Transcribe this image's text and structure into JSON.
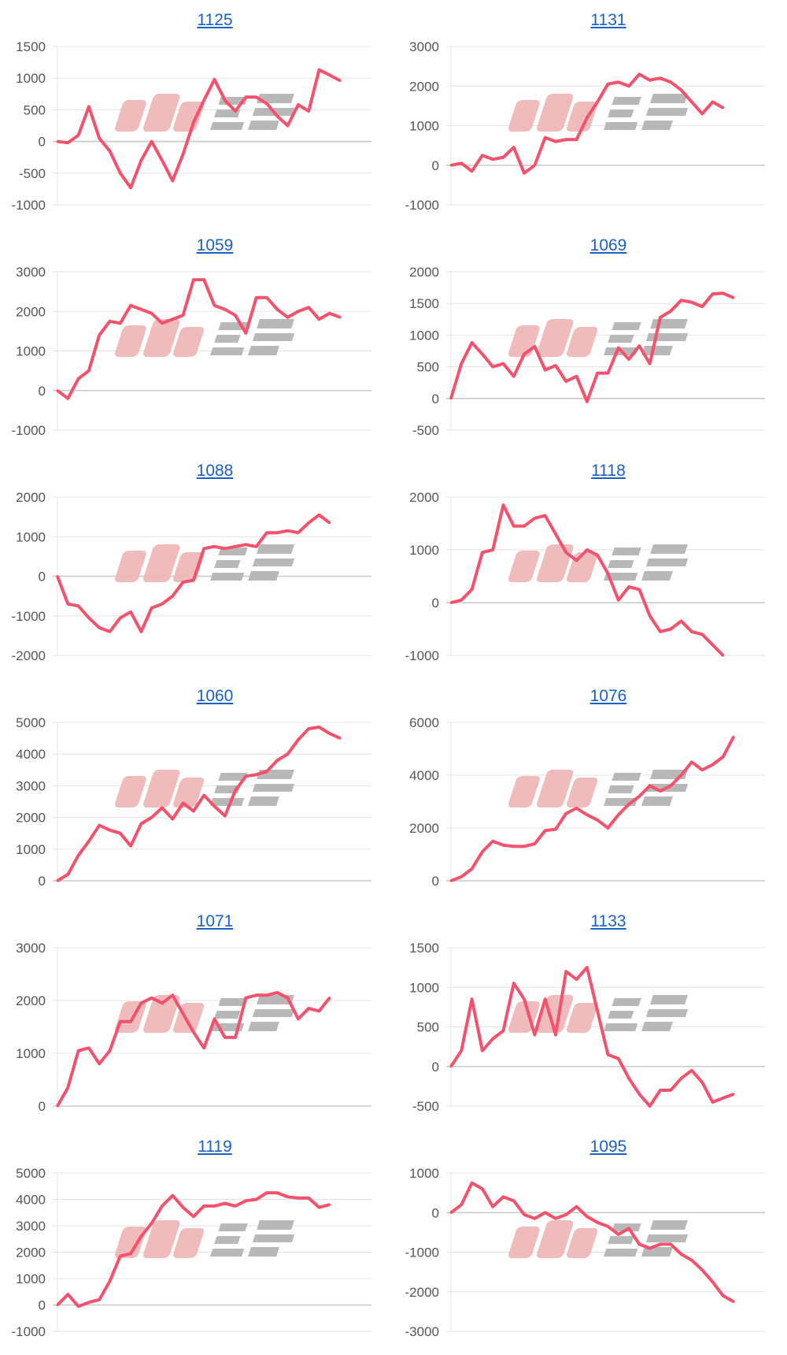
{
  "watermark_logo_text": "みんレポ",
  "colors": {
    "line": "#f4516c",
    "grid": "#e3e3e3",
    "axis": "#c8c8c8",
    "tick": "#555555",
    "title": "#1a5fc8",
    "wm_pink": "#eeb4b4",
    "wm_grey": "#b4b4b4"
  },
  "chart_data": [
    {
      "type": "line",
      "title": "1125",
      "ylim": [
        -1000,
        1500
      ],
      "ystep": 500,
      "yticks": [
        "1500",
        "1000",
        "500",
        "0",
        "-500",
        "-1000"
      ],
      "slots": 31,
      "values": [
        0,
        -20,
        100,
        550,
        50,
        -150,
        -500,
        -730,
        -300,
        0,
        -300,
        -620,
        -200,
        300,
        650,
        980,
        650,
        480,
        700,
        700,
        600,
        400,
        250,
        580,
        480,
        1130,
        1050,
        960
      ]
    },
    {
      "type": "line",
      "title": "1131",
      "ylim": [
        -1000,
        3000
      ],
      "ystep": 1000,
      "yticks": [
        "3000",
        "2000",
        "1000",
        "0",
        "-1000"
      ],
      "slots": 31,
      "values": [
        0,
        50,
        -150,
        250,
        150,
        200,
        450,
        -200,
        0,
        700,
        600,
        650,
        650,
        1200,
        1600,
        2050,
        2100,
        2000,
        2300,
        2150,
        2200,
        2100,
        1900,
        1600,
        1300,
        1600,
        1450
      ]
    },
    {
      "type": "line",
      "title": "1059",
      "ylim": [
        -1000,
        3000
      ],
      "ystep": 1000,
      "yticks": [
        "3000",
        "2000",
        "1000",
        "0",
        "-1000"
      ],
      "slots": 31,
      "values": [
        0,
        -200,
        300,
        500,
        1400,
        1750,
        1700,
        2150,
        2050,
        1950,
        1700,
        1800,
        1900,
        2800,
        2800,
        2150,
        2050,
        1900,
        1450,
        2350,
        2350,
        2050,
        1850,
        2000,
        2100,
        1800,
        1950,
        1850
      ]
    },
    {
      "type": "line",
      "title": "1069",
      "ylim": [
        -500,
        2000
      ],
      "ystep": 500,
      "yticks": [
        "2000",
        "1500",
        "1000",
        "500",
        "0",
        "-500"
      ],
      "slots": 31,
      "values": [
        0,
        550,
        880,
        700,
        500,
        550,
        350,
        700,
        820,
        450,
        520,
        270,
        350,
        -50,
        400,
        400,
        800,
        620,
        830,
        550,
        1280,
        1380,
        1550,
        1520,
        1450,
        1650,
        1660,
        1590
      ]
    },
    {
      "type": "line",
      "title": "1088",
      "ylim": [
        -2000,
        2000
      ],
      "ystep": 1000,
      "yticks": [
        "2000",
        "1000",
        "0",
        "-1000",
        "-2000"
      ],
      "slots": 31,
      "values": [
        0,
        -700,
        -750,
        -1050,
        -1300,
        -1400,
        -1050,
        -900,
        -1400,
        -800,
        -700,
        -500,
        -150,
        -100,
        700,
        750,
        700,
        750,
        800,
        750,
        1100,
        1100,
        1150,
        1100,
        1350,
        1550,
        1350
      ]
    },
    {
      "type": "line",
      "title": "1118",
      "ylim": [
        -1000,
        2000
      ],
      "ystep": 1000,
      "yticks": [
        "2000",
        "1000",
        "0",
        "-1000"
      ],
      "slots": 31,
      "values": [
        0,
        50,
        250,
        950,
        1000,
        1850,
        1450,
        1450,
        1600,
        1650,
        1300,
        950,
        800,
        1000,
        900,
        550,
        50,
        300,
        250,
        -250,
        -550,
        -500,
        -350,
        -550,
        -600,
        -800,
        -1000
      ]
    },
    {
      "type": "line",
      "title": "1060",
      "ylim": [
        0,
        5000
      ],
      "ystep": 1000,
      "yticks": [
        "5000",
        "4000",
        "3000",
        "2000",
        "1000",
        "0"
      ],
      "slots": 31,
      "values": [
        0,
        200,
        800,
        1250,
        1750,
        1600,
        1500,
        1100,
        1800,
        2000,
        2300,
        1950,
        2450,
        2200,
        2700,
        2350,
        2050,
        2850,
        3300,
        3350,
        3450,
        3800,
        4000,
        4450,
        4800,
        4850,
        4650,
        4500
      ]
    },
    {
      "type": "line",
      "title": "1076",
      "ylim": [
        0,
        6000
      ],
      "ystep": 2000,
      "yticks": [
        "6000",
        "4000",
        "2000",
        "0"
      ],
      "slots": 31,
      "values": [
        0,
        150,
        450,
        1100,
        1500,
        1350,
        1300,
        1300,
        1400,
        1900,
        1950,
        2550,
        2750,
        2500,
        2300,
        2000,
        2500,
        2900,
        3200,
        3600,
        3400,
        3600,
        4000,
        4500,
        4200,
        4400,
        4700,
        5450
      ]
    },
    {
      "type": "line",
      "title": "1071",
      "ylim": [
        0,
        3000
      ],
      "ystep": 1000,
      "yticks": [
        "3000",
        "2000",
        "1000",
        "0"
      ],
      "slots": 31,
      "values": [
        0,
        350,
        1050,
        1100,
        800,
        1050,
        1600,
        1600,
        1950,
        2050,
        1950,
        2100,
        1750,
        1400,
        1100,
        1650,
        1300,
        1300,
        2050,
        2100,
        2100,
        2150,
        2050,
        1650,
        1850,
        1800,
        2050
      ]
    },
    {
      "type": "line",
      "title": "1133",
      "ylim": [
        -500,
        1500
      ],
      "ystep": 500,
      "yticks": [
        "1500",
        "1000",
        "500",
        "0",
        "-500"
      ],
      "slots": 31,
      "values": [
        0,
        200,
        850,
        200,
        350,
        450,
        1050,
        850,
        400,
        850,
        400,
        1200,
        1100,
        1250,
        700,
        150,
        100,
        -150,
        -350,
        -500,
        -300,
        -300,
        -150,
        -50,
        -200,
        -450,
        -400,
        -350
      ]
    },
    {
      "type": "line",
      "title": "1119",
      "ylim": [
        -1000,
        5000
      ],
      "ystep": 1000,
      "yticks": [
        "5000",
        "4000",
        "3000",
        "2000",
        "1000",
        "0",
        "-1000"
      ],
      "slots": 31,
      "values": [
        0,
        400,
        -50,
        100,
        200,
        900,
        1850,
        1950,
        2600,
        3100,
        3750,
        4150,
        3700,
        3350,
        3750,
        3750,
        3850,
        3750,
        3950,
        4000,
        4250,
        4250,
        4100,
        4050,
        4050,
        3700,
        3800
      ]
    },
    {
      "type": "line",
      "title": "1095",
      "ylim": [
        -3000,
        1000
      ],
      "ystep": 1000,
      "yticks": [
        "1000",
        "0",
        "-1000",
        "-2000",
        "-3000"
      ],
      "slots": 31,
      "values": [
        0,
        200,
        750,
        600,
        150,
        400,
        300,
        -50,
        -150,
        0,
        -150,
        -50,
        150,
        -100,
        -250,
        -350,
        -550,
        -400,
        -800,
        -900,
        -800,
        -800,
        -1050,
        -1200,
        -1450,
        -1750,
        -2100,
        -2250
      ]
    }
  ]
}
